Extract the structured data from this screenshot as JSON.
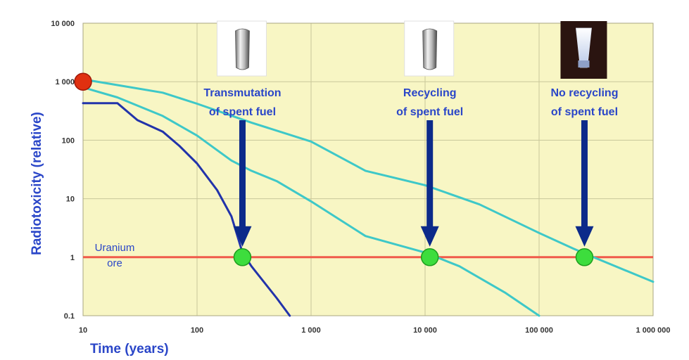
{
  "chart_data": {
    "type": "line",
    "title": "",
    "xlabel": "Time (years)",
    "ylabel": "Radiotoxicity (relative)",
    "xscale": "log",
    "yscale": "log",
    "xlim": [
      10,
      1000000
    ],
    "ylim": [
      0.1,
      10000
    ],
    "x_ticks": [
      10,
      100,
      1000,
      10000,
      100000,
      1000000
    ],
    "x_tick_labels": [
      "10",
      "100",
      "1 000",
      "10 000",
      "100 000",
      "1 000 000"
    ],
    "y_ticks": [
      0.1,
      1,
      10,
      100,
      1000,
      10000
    ],
    "y_tick_labels": [
      "0.1",
      "1",
      "10",
      "100",
      "1 000",
      "10 000"
    ],
    "grid": true,
    "plot_background": "#f8f6c4",
    "series": [
      {
        "color": "#2233aa",
        "points": [
          [
            10,
            430
          ],
          [
            20,
            430
          ],
          [
            30,
            220
          ],
          [
            50,
            140
          ],
          [
            70,
            80
          ],
          [
            100,
            40
          ],
          [
            150,
            14
          ],
          [
            200,
            5
          ],
          [
            250,
            1.2
          ],
          [
            300,
            0.7
          ],
          [
            500,
            0.2
          ],
          [
            650,
            0.1
          ]
        ]
      },
      {
        "color": "#3ec8c8",
        "points": [
          [
            10,
            800
          ],
          [
            20,
            540
          ],
          [
            50,
            260
          ],
          [
            100,
            120
          ],
          [
            200,
            45
          ],
          [
            300,
            30
          ],
          [
            500,
            20
          ],
          [
            1000,
            9
          ],
          [
            3000,
            2.3
          ],
          [
            10000,
            1.2
          ],
          [
            20000,
            0.7
          ],
          [
            50000,
            0.25
          ],
          [
            100000,
            0.1
          ]
        ]
      },
      {
        "color": "#3ec8c8",
        "points": [
          [
            10,
            1100
          ],
          [
            50,
            650
          ],
          [
            100,
            420
          ],
          [
            300,
            200
          ],
          [
            1000,
            95
          ],
          [
            3000,
            30
          ],
          [
            10000,
            17
          ],
          [
            30000,
            8
          ],
          [
            100000,
            2.6
          ],
          [
            200000,
            1.4
          ],
          [
            300000,
            1.0
          ],
          [
            1000000,
            0.38
          ]
        ]
      }
    ],
    "reference_line": {
      "y": 1,
      "color": "#f05a4a",
      "label": [
        "Uranium",
        "ore"
      ]
    },
    "start_marker": {
      "x": 10,
      "y": 1000,
      "color": "#e03010"
    },
    "annotations": [
      {
        "label": [
          "Transmutation",
          "of spent fuel"
        ],
        "x": 250,
        "y": 1,
        "marker_color": "#3ddd3d",
        "arrow_color": "#0c2a8a",
        "icon": "fuel-pellet-icon"
      },
      {
        "label": [
          "Recycling",
          "of spent fuel"
        ],
        "x": 11000,
        "y": 1,
        "marker_color": "#3ddd3d",
        "arrow_color": "#0c2a8a",
        "icon": "fuel-pellet-icon"
      },
      {
        "label": [
          "No recycling",
          "of spent fuel"
        ],
        "x": 250000,
        "y": 1,
        "marker_color": "#3ddd3d",
        "arrow_color": "#0c2a8a",
        "icon": "fuel-assembly-icon"
      }
    ]
  }
}
